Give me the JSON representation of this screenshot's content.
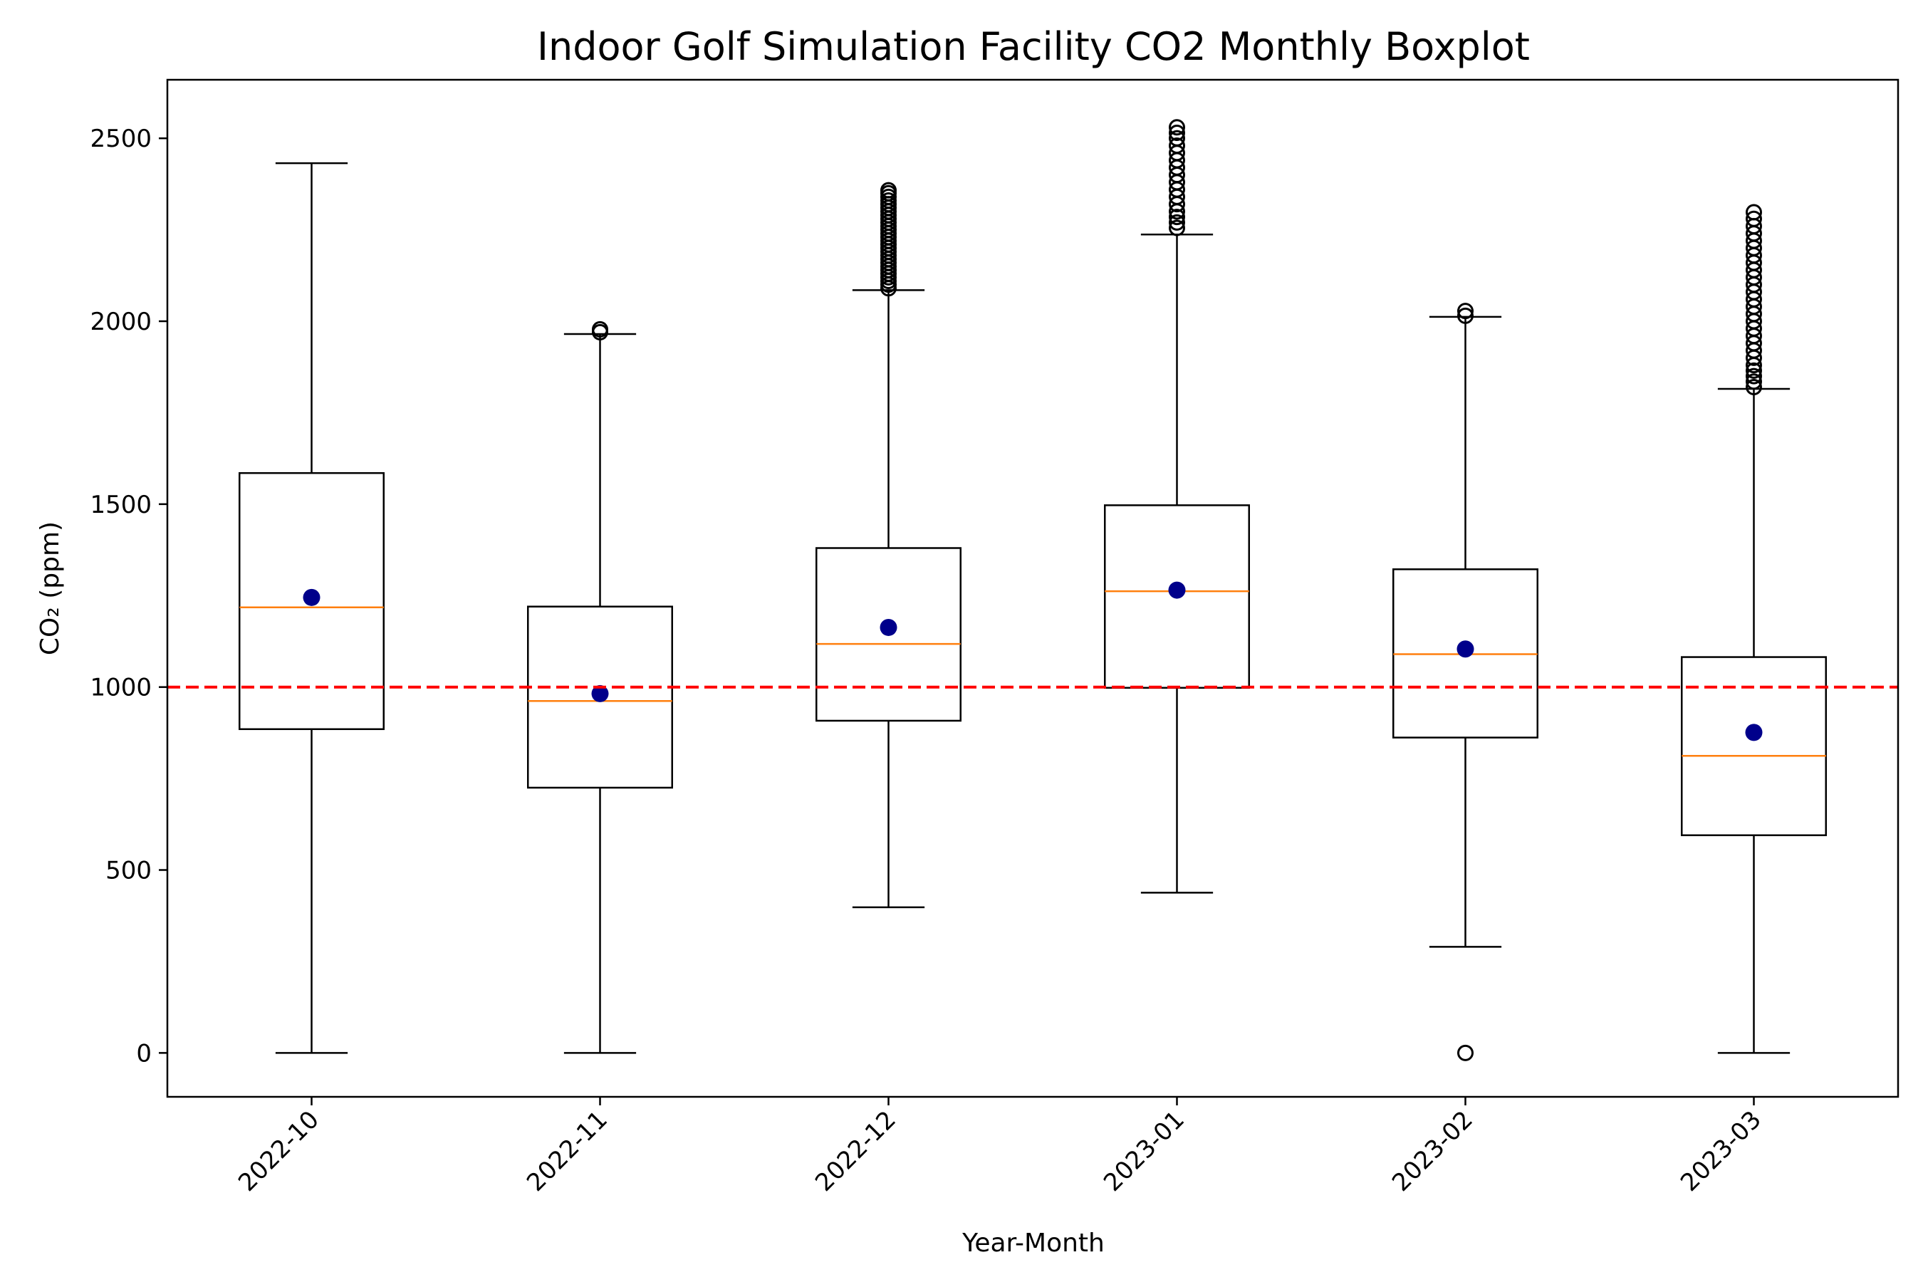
{
  "chart_data": {
    "type": "boxplot",
    "title": "Indoor Golf Simulation Facility CO2 Monthly Boxplot",
    "xlabel": "Year-Month",
    "ylabel": "CO₂ (ppm)",
    "ylim": [
      -120,
      2660
    ],
    "yticks": [
      0,
      500,
      1000,
      1500,
      2000,
      2500
    ],
    "reference_line": {
      "value": 1000,
      "color": "#ff0000",
      "style": "dashed"
    },
    "colors": {
      "box": "#000000",
      "median": "#ff7f0e",
      "mean": "#00008b",
      "outlier": "#000000"
    },
    "categories": [
      "2022-10",
      "2022-11",
      "2022-12",
      "2023-01",
      "2023-02",
      "2023-03"
    ],
    "boxes": [
      {
        "whislo": 0,
        "q1": 885,
        "med": 1218,
        "q3": 1585,
        "whishi": 2432,
        "mean": 1245,
        "fliers": []
      },
      {
        "whislo": 0,
        "q1": 725,
        "med": 962,
        "q3": 1220,
        "whishi": 1965,
        "mean": 982,
        "fliers": [
          1970,
          1978
        ]
      },
      {
        "whislo": 398,
        "q1": 908,
        "med": 1118,
        "q3": 1380,
        "whishi": 2085,
        "mean": 1163,
        "fliers": [
          2090,
          2100,
          2110,
          2120,
          2130,
          2140,
          2150,
          2160,
          2170,
          2180,
          2190,
          2200,
          2210,
          2220,
          2230,
          2240,
          2250,
          2260,
          2270,
          2280,
          2290,
          2300,
          2310,
          2320,
          2330,
          2340,
          2350,
          2358
        ]
      },
      {
        "whislo": 438,
        "q1": 998,
        "med": 1262,
        "q3": 1497,
        "whishi": 2237,
        "mean": 1265,
        "fliers": [
          2255,
          2270,
          2285,
          2300,
          2320,
          2340,
          2360,
          2380,
          2400,
          2420,
          2440,
          2460,
          2480,
          2500,
          2515,
          2530
        ]
      },
      {
        "whislo": 290,
        "q1": 862,
        "med": 1090,
        "q3": 1322,
        "whishi": 2012,
        "mean": 1104,
        "fliers": [
          0,
          2015,
          2028
        ]
      },
      {
        "whislo": 0,
        "q1": 595,
        "med": 812,
        "q3": 1082,
        "whishi": 1815,
        "mean": 876,
        "fliers": [
          1820,
          1835,
          1850,
          1865,
          1880,
          1900,
          1920,
          1940,
          1960,
          1980,
          2000,
          2020,
          2040,
          2060,
          2080,
          2100,
          2120,
          2140,
          2160,
          2180,
          2200,
          2220,
          2240,
          2260,
          2280,
          2298
        ]
      }
    ]
  }
}
